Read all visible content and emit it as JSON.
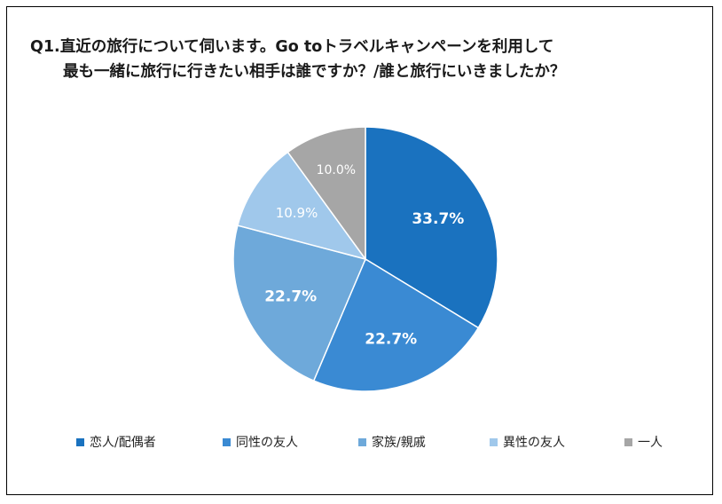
{
  "chart_data": {
    "type": "pie",
    "title_lines": [
      "Q1.直近の旅行について伺います。Go toトラベルキャンペーンを利用して",
      "最も一緒に旅行に行きたい相手は誰ですか？/誰と旅行にいきましたか？"
    ],
    "slices": [
      {
        "label": "恋人/配偶者",
        "value": 33.7,
        "display": "33.7%",
        "color": "#1a72bf",
        "text_color": "#ffffff"
      },
      {
        "label": "同性の友人",
        "value": 22.7,
        "display": "22.7%",
        "color": "#3a8ad3",
        "text_color": "#ffffff"
      },
      {
        "label": "家族/親戚",
        "value": 22.7,
        "display": "22.7%",
        "color": "#6ea9da",
        "text_color": "#ffffff"
      },
      {
        "label": "異性の友人",
        "value": 10.9,
        "display": "10.9%",
        "color": "#a0c8eb",
        "text_color": "#ffffff"
      },
      {
        "label": "一人",
        "value": 10.0,
        "display": "10.0%",
        "color": "#a6a6a6",
        "text_color": "#ffffff"
      }
    ],
    "legend_position": "bottom",
    "start_angle": "12 o'clock",
    "direction": "clockwise"
  }
}
